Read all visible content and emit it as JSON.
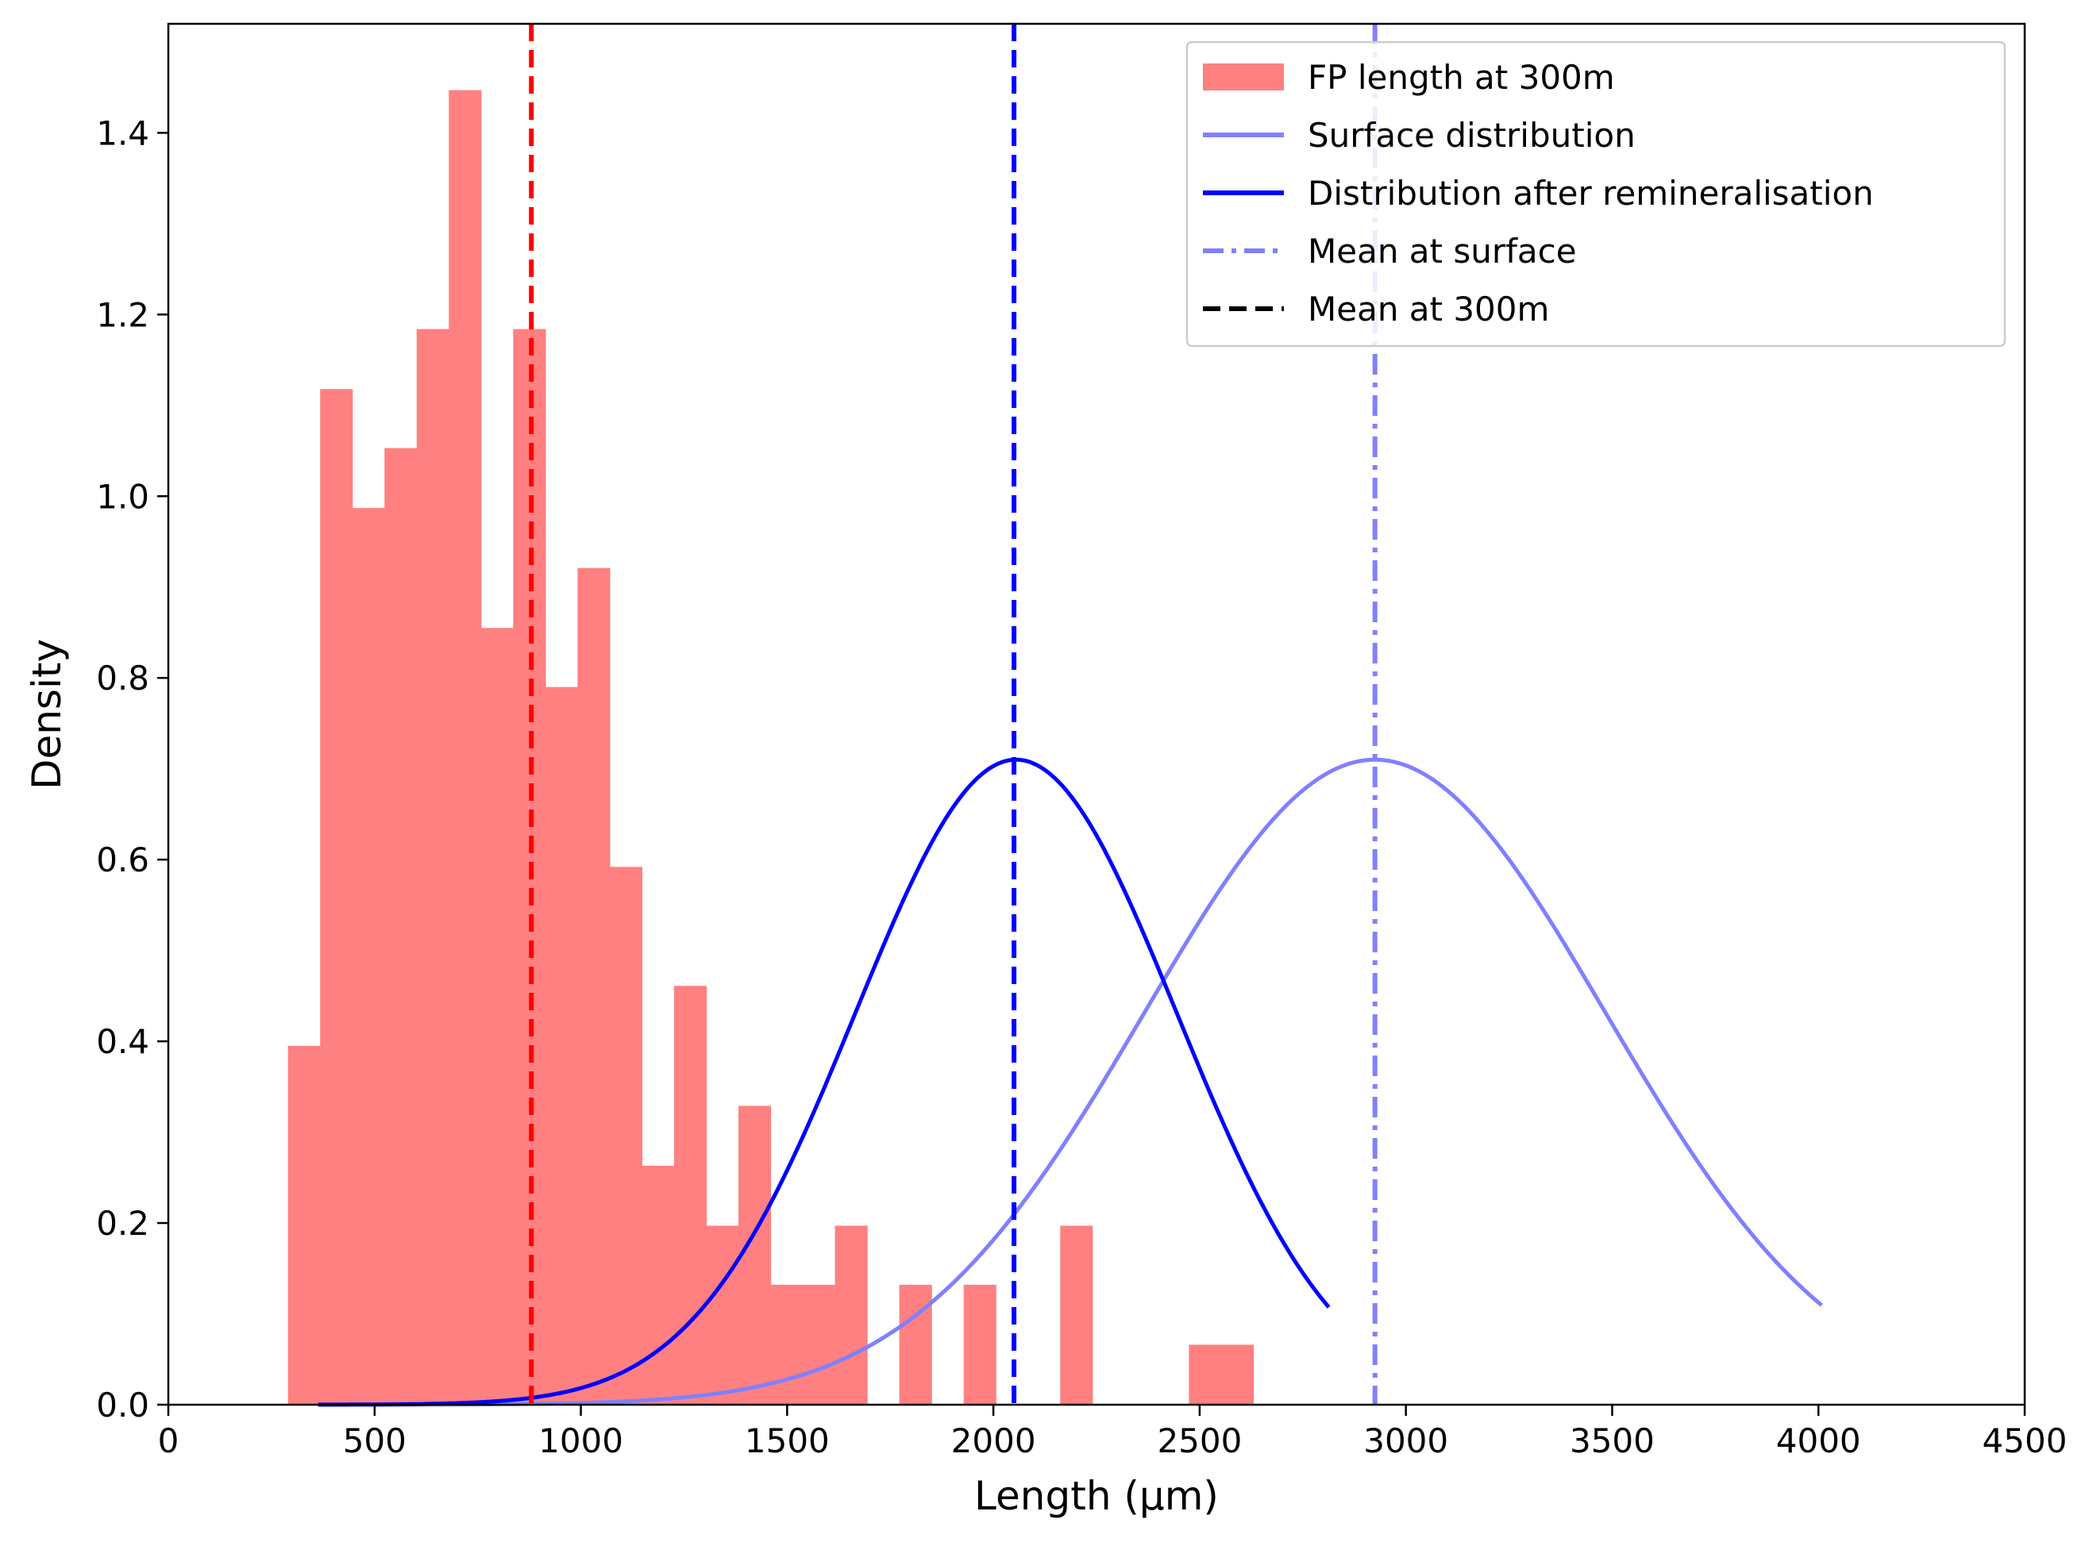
{
  "chart_data": {
    "type": "histogram",
    "xlabel": "Length (µm)",
    "ylabel": "Density",
    "xlim": [
      0,
      4500
    ],
    "ylim": [
      0,
      1.52
    ],
    "x_ticks": [
      0,
      500,
      1000,
      1500,
      2000,
      2500,
      3000,
      3500,
      4000,
      4500
    ],
    "y_ticks": [
      "0.0",
      "0.2",
      "0.4",
      "0.6",
      "0.8",
      "1.0",
      "1.2",
      "1.4"
    ],
    "legend_position": "top-right",
    "histogram": {
      "name": "FP length at 300m",
      "color": "#ff8080",
      "bin_edges": [
        290,
        368,
        446,
        524,
        602,
        680,
        758,
        836,
        914,
        992,
        1070,
        1148,
        1226,
        1304,
        1382,
        1460,
        1538,
        1616,
        1694,
        1772,
        1850,
        1928,
        2006,
        2084,
        2162,
        2240,
        2318,
        2396,
        2474,
        2552,
        2630
      ],
      "densities": [
        0.395,
        1.118,
        0.987,
        1.053,
        1.184,
        1.447,
        0.855,
        1.184,
        0.79,
        0.921,
        0.592,
        0.263,
        0.461,
        0.197,
        0.329,
        0.132,
        0.132,
        0.197,
        0.0,
        0.132,
        0.0,
        0.132,
        0.0,
        0.0,
        0.197,
        0.0,
        0.0,
        0.0,
        0.066,
        0.066
      ]
    },
    "curves": [
      {
        "name": "Surface distribution",
        "color": "#8080ff",
        "mean": 2925,
        "sd": 560,
        "peak": 0.71,
        "x_range": [
          363,
          4008
        ],
        "style": "solid"
      },
      {
        "name": "Distribution after remineralisation",
        "color": "#0000ff",
        "mean": 2055,
        "sd": 390,
        "peak": 0.71,
        "x_range": [
          363,
          2815
        ],
        "style": "solid"
      }
    ],
    "vlines": [
      {
        "name": "Mean at surface",
        "x": 2925,
        "color": "#8080ff",
        "style": "dashdot"
      },
      {
        "name": "Mean at 300m",
        "x": 880,
        "color": "#ff0000",
        "style": "dashed"
      },
      {
        "name": "",
        "x": 2050,
        "color": "#0000ff",
        "style": "dashed"
      }
    ],
    "legend": [
      {
        "label": "FP length at 300m",
        "kind": "patch",
        "color": "#ff8080"
      },
      {
        "label": "Surface distribution",
        "kind": "line",
        "color": "#8080ff",
        "style": "solid"
      },
      {
        "label": "Distribution after remineralisation",
        "kind": "line",
        "color": "#0000ff",
        "style": "solid"
      },
      {
        "label": "Mean at surface",
        "kind": "line",
        "color": "#8080ff",
        "style": "dashdot"
      },
      {
        "label": "Mean at 300m",
        "kind": "line",
        "color": "#000000",
        "style": "dashed"
      }
    ]
  }
}
